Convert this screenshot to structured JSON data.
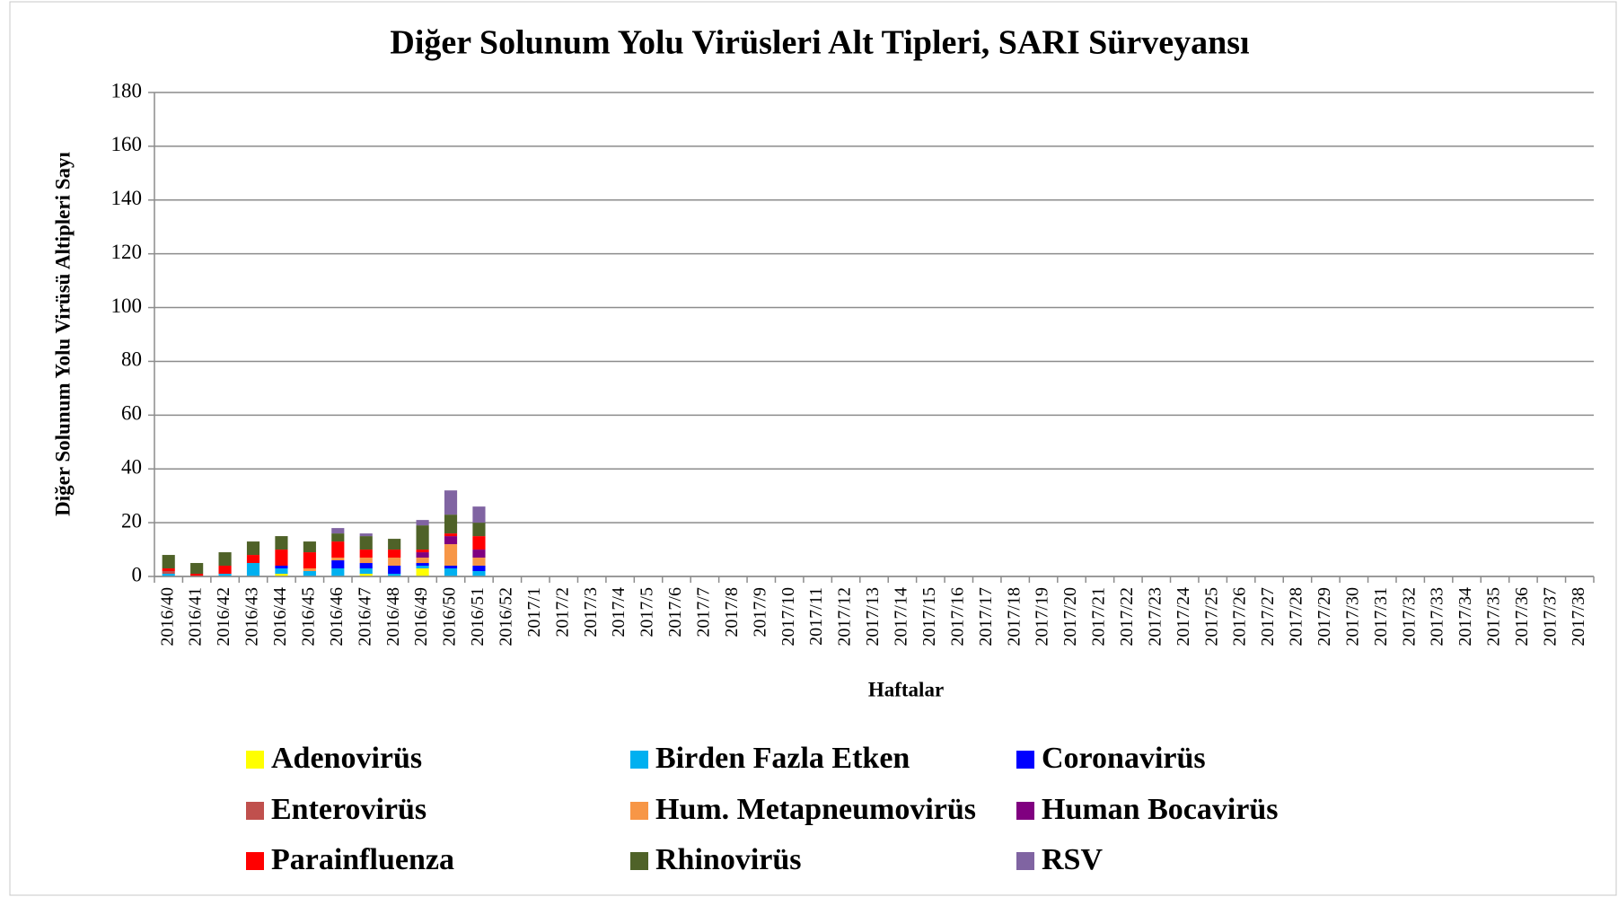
{
  "chart_data": {
    "type": "stacked_bar",
    "title": "Diğer Solunum Yolu Virüsleri Alt Tipleri, SARI Sürveyansı",
    "x_label": "Haftalar",
    "y_label": "Diğer Solunum Yolu Virüsü Altipleri Sayı",
    "categories": [
      "2016/40",
      "2016/41",
      "2016/42",
      "2016/43",
      "2016/44",
      "2016/45",
      "2016/46",
      "2016/47",
      "2016/48",
      "2016/49",
      "2016/50",
      "2016/51",
      "2016/52",
      "2017/1",
      "2017/2",
      "2017/3",
      "2017/4",
      "2017/5",
      "2017/6",
      "2017/7",
      "2017/8",
      "2017/9",
      "2017/10",
      "2017/11",
      "2017/12",
      "2017/13",
      "2017/14",
      "2017/15",
      "2017/16",
      "2017/17",
      "2017/18",
      "2017/19",
      "2017/20",
      "2017/21",
      "2017/22",
      "2017/23",
      "2017/24",
      "2017/25",
      "2017/26",
      "2017/27",
      "2017/28",
      "2017/29",
      "2017/30",
      "2017/31",
      "2017/32",
      "2017/33",
      "2017/34",
      "2017/35",
      "2017/36",
      "2017/37",
      "2017/38"
    ],
    "ylim": [
      0,
      180
    ],
    "yticks": [
      0,
      20,
      40,
      60,
      80,
      100,
      120,
      140,
      160,
      180
    ],
    "grid": true,
    "series": [
      {
        "name": "Adenovirüs",
        "color": "#ffff00",
        "values": [
          0,
          0,
          0,
          0,
          1,
          0,
          0,
          1,
          0,
          3,
          0,
          0,
          0,
          0,
          0,
          0,
          0,
          0,
          0,
          0,
          0,
          0,
          0,
          0,
          0,
          0,
          0,
          0,
          0,
          0,
          0,
          0,
          0,
          0,
          0,
          0,
          0,
          0,
          0,
          0,
          0,
          0,
          0,
          0,
          0,
          0,
          0,
          0,
          0,
          0,
          0
        ]
      },
      {
        "name": "Birden Fazla Etken",
        "color": "#00b0f0",
        "values": [
          1,
          0,
          1,
          5,
          2,
          2,
          3,
          2,
          1,
          1,
          3,
          2,
          0,
          0,
          0,
          0,
          0,
          0,
          0,
          0,
          0,
          0,
          0,
          0,
          0,
          0,
          0,
          0,
          0,
          0,
          0,
          0,
          0,
          0,
          0,
          0,
          0,
          0,
          0,
          0,
          0,
          0,
          0,
          0,
          0,
          0,
          0,
          0,
          0,
          0,
          0
        ]
      },
      {
        "name": "Coronavirüs",
        "color": "#0000ff",
        "values": [
          0,
          0,
          0,
          0,
          1,
          0,
          3,
          2,
          3,
          1,
          1,
          2,
          0,
          0,
          0,
          0,
          0,
          0,
          0,
          0,
          0,
          0,
          0,
          0,
          0,
          0,
          0,
          0,
          0,
          0,
          0,
          0,
          0,
          0,
          0,
          0,
          0,
          0,
          0,
          0,
          0,
          0,
          0,
          0,
          0,
          0,
          0,
          0,
          0,
          0,
          0
        ]
      },
      {
        "name": "Enterovirüs",
        "color": "#c0504d",
        "values": [
          1,
          0,
          0,
          0,
          0,
          0,
          0,
          0,
          0,
          0,
          0,
          0,
          0,
          0,
          0,
          0,
          0,
          0,
          0,
          0,
          0,
          0,
          0,
          0,
          0,
          0,
          0,
          0,
          0,
          0,
          0,
          0,
          0,
          0,
          0,
          0,
          0,
          0,
          0,
          0,
          0,
          0,
          0,
          0,
          0,
          0,
          0,
          0,
          0,
          0,
          0
        ]
      },
      {
        "name": "Hum. Metapneumovirüs",
        "color": "#f79646",
        "values": [
          0,
          0,
          0,
          0,
          0,
          1,
          1,
          2,
          3,
          2,
          8,
          3,
          0,
          0,
          0,
          0,
          0,
          0,
          0,
          0,
          0,
          0,
          0,
          0,
          0,
          0,
          0,
          0,
          0,
          0,
          0,
          0,
          0,
          0,
          0,
          0,
          0,
          0,
          0,
          0,
          0,
          0,
          0,
          0,
          0,
          0,
          0,
          0,
          0,
          0,
          0
        ]
      },
      {
        "name": "Human Bocavirüs",
        "color": "#800080",
        "values": [
          0,
          0,
          0,
          0,
          0,
          0,
          0,
          0,
          0,
          2,
          3,
          3,
          0,
          0,
          0,
          0,
          0,
          0,
          0,
          0,
          0,
          0,
          0,
          0,
          0,
          0,
          0,
          0,
          0,
          0,
          0,
          0,
          0,
          0,
          0,
          0,
          0,
          0,
          0,
          0,
          0,
          0,
          0,
          0,
          0,
          0,
          0,
          0,
          0,
          0,
          0
        ]
      },
      {
        "name": "Parainfluenza",
        "color": "#ff0000",
        "values": [
          1,
          1,
          3,
          3,
          6,
          6,
          6,
          3,
          3,
          1,
          1,
          5,
          0,
          0,
          0,
          0,
          0,
          0,
          0,
          0,
          0,
          0,
          0,
          0,
          0,
          0,
          0,
          0,
          0,
          0,
          0,
          0,
          0,
          0,
          0,
          0,
          0,
          0,
          0,
          0,
          0,
          0,
          0,
          0,
          0,
          0,
          0,
          0,
          0,
          0,
          0
        ]
      },
      {
        "name": "Rhinovirüs",
        "color": "#4f6228",
        "values": [
          5,
          4,
          5,
          5,
          5,
          4,
          3,
          5,
          4,
          9,
          7,
          5,
          0,
          0,
          0,
          0,
          0,
          0,
          0,
          0,
          0,
          0,
          0,
          0,
          0,
          0,
          0,
          0,
          0,
          0,
          0,
          0,
          0,
          0,
          0,
          0,
          0,
          0,
          0,
          0,
          0,
          0,
          0,
          0,
          0,
          0,
          0,
          0,
          0,
          0,
          0
        ]
      },
      {
        "name": "RSV",
        "color": "#8064a2",
        "values": [
          0,
          0,
          0,
          0,
          0,
          0,
          2,
          1,
          0,
          2,
          9,
          6,
          0,
          0,
          0,
          0,
          0,
          0,
          0,
          0,
          0,
          0,
          0,
          0,
          0,
          0,
          0,
          0,
          0,
          0,
          0,
          0,
          0,
          0,
          0,
          0,
          0,
          0,
          0,
          0,
          0,
          0,
          0,
          0,
          0,
          0,
          0,
          0,
          0,
          0,
          0
        ]
      }
    ]
  }
}
